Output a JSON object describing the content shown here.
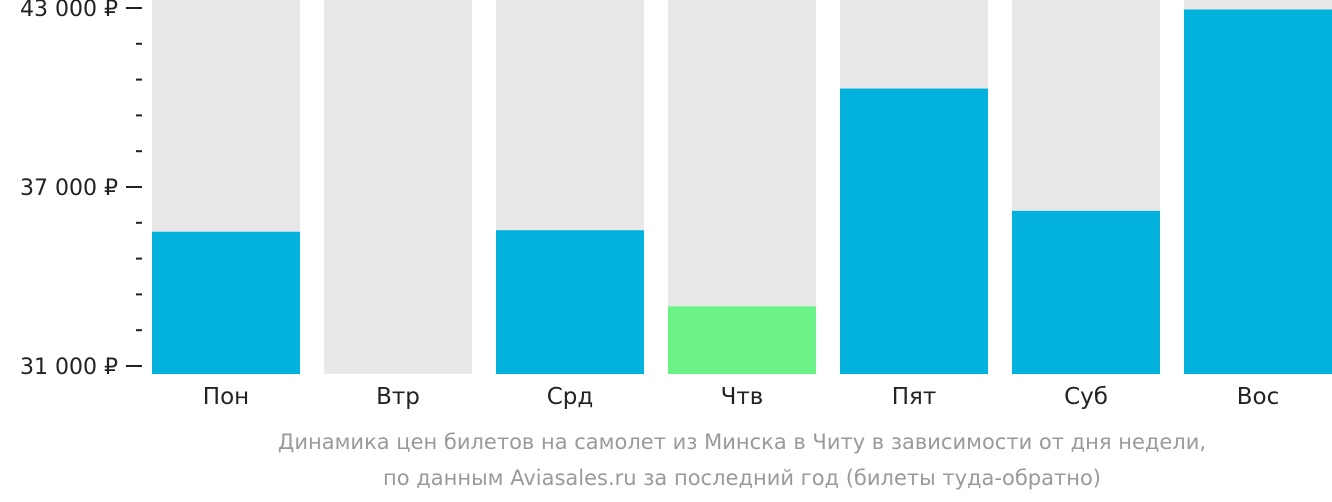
{
  "chart_data": {
    "type": "bar",
    "categories": [
      "Пон",
      "Втр",
      "Срд",
      "Чтв",
      "Пят",
      "Суб",
      "Вос"
    ],
    "values": [
      35500,
      null,
      35550,
      33000,
      40300,
      36200,
      42950
    ],
    "bar_colors": [
      "#02b1dc",
      null,
      "#02b1dc",
      "#6bf286",
      "#02b1dc",
      "#02b1dc",
      "#02b1dc"
    ],
    "track_color": "#e8e8e8",
    "ylim": [
      31000,
      43000
    ],
    "yticks": [
      {
        "value": 43000,
        "label": "43 000 ₽"
      },
      {
        "value": 37000,
        "label": "37 000 ₽"
      },
      {
        "value": 31000,
        "label": "31 000 ₽"
      }
    ],
    "minor_tick_step": 1200,
    "grid": false,
    "xlabel": "",
    "ylabel": ""
  },
  "caption": {
    "line1": "Динамика цен билетов на самолет из Минска в Читу в зависимости от дня недели,",
    "line2": "по данным Aviasales.ru за последний год (билеты туда-обратно)"
  }
}
